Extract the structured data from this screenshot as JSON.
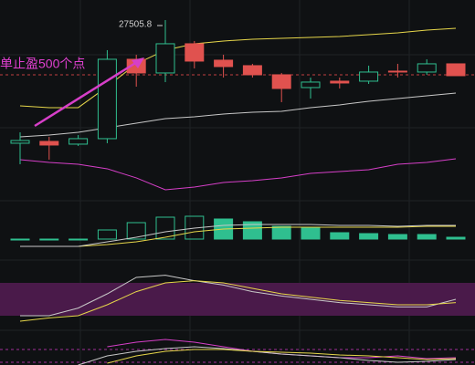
{
  "chart_data": [
    {
      "type": "candlestick",
      "ylim": [
        26415.8,
        27615.8
      ],
      "up_color": "#2fbf8f",
      "down_color": "#e0524f",
      "candles": [
        {
          "open": 26831,
          "close": 26846,
          "high": 26891,
          "low": 26716
        },
        {
          "open": 26841,
          "close": 26821,
          "high": 26866,
          "low": 26741
        },
        {
          "open": 26826,
          "close": 26856,
          "high": 26876,
          "low": 26816
        },
        {
          "open": 26856,
          "close": 27291,
          "high": 27341,
          "low": 26831
        },
        {
          "open": 27291,
          "close": 27216,
          "high": 27316,
          "low": 27141
        },
        {
          "open": 27216,
          "close": 27376,
          "high": 27505.8,
          "low": 27166
        },
        {
          "open": 27376,
          "close": 27281,
          "high": 27391,
          "low": 27241
        },
        {
          "open": 27286,
          "close": 27251,
          "high": 27316,
          "low": 27191
        },
        {
          "open": 27256,
          "close": 27206,
          "high": 27266,
          "low": 27191
        },
        {
          "open": 27206,
          "close": 27131,
          "high": 27216,
          "low": 27056
        },
        {
          "open": 27136,
          "close": 27166,
          "high": 27191,
          "low": 27076
        },
        {
          "open": 27171,
          "close": 27161,
          "high": 27191,
          "low": 27131
        },
        {
          "open": 27171,
          "close": 27221,
          "high": 27256,
          "low": 27156
        },
        {
          "open": 27226,
          "close": 27221,
          "high": 27266,
          "low": 27191
        },
        {
          "open": 27221,
          "close": 27266,
          "high": 27291,
          "low": 27206
        },
        {
          "open": 27266,
          "close": 27201,
          "high": 27266,
          "low": 27201
        }
      ],
      "series": [
        {
          "color": "#e6d64a",
          "values": [
            27036,
            27026,
            27026,
            27141,
            27266,
            27341,
            27376,
            27391,
            27401,
            27406,
            27411,
            27416,
            27426,
            27436,
            27451,
            27461
          ]
        },
        {
          "color": "#c8c8c8",
          "values": [
            26866,
            26876,
            26891,
            26916,
            26941,
            26966,
            26976,
            26991,
            27001,
            27006,
            27026,
            27041,
            27061,
            27076,
            27091,
            27106
          ]
        },
        {
          "color": "#d63fc8",
          "values": [
            26741,
            26726,
            26716,
            26691,
            26641,
            26576,
            26591,
            26616,
            26626,
            26641,
            26666,
            26676,
            26686,
            26716,
            26726,
            26746
          ]
        }
      ],
      "price_line": 27206,
      "annotation": "单止盈500个点"
    },
    {
      "type": "bar",
      "ylim": [
        -10,
        30
      ],
      "up_color": "#2fbf8f",
      "values": [
        -1,
        -1,
        -1,
        10,
        18,
        24,
        25,
        22,
        19,
        14,
        12,
        7,
        6,
        5,
        5,
        2
      ],
      "series": [
        {
          "color": "#e6d64a",
          "values": [
            -8,
            -8,
            -8,
            -6,
            -3,
            2,
            8,
            11,
            12,
            13,
            13,
            13,
            13,
            13,
            14,
            14
          ]
        },
        {
          "color": "#c8c8c8",
          "values": [
            -8,
            -8,
            -8,
            -3,
            2,
            8,
            12,
            15,
            16,
            16,
            16,
            15,
            15,
            14,
            15,
            15
          ]
        }
      ]
    },
    {
      "type": "line",
      "ylim": [
        0,
        100
      ],
      "band": [
        20,
        80
      ],
      "band_color": "#4a1a4a",
      "series": [
        {
          "color": "#c8c8c8",
          "values": [
            20,
            20,
            34,
            60,
            90,
            94,
            84,
            76,
            64,
            56,
            50,
            44,
            40,
            36,
            36,
            50
          ]
        },
        {
          "color": "#e6d64a",
          "values": [
            10,
            16,
            20,
            40,
            64,
            80,
            84,
            80,
            70,
            60,
            54,
            48,
            44,
            40,
            40,
            44
          ]
        }
      ]
    },
    {
      "type": "line",
      "ylim": [
        0,
        35
      ],
      "levels": [
        17,
        3
      ],
      "level_color": "#a0309a",
      "series": [
        {
          "color": "#d63fc8",
          "values": [
            null,
            null,
            null,
            20,
            25,
            28,
            25,
            20,
            15,
            12,
            10,
            8,
            8,
            10,
            7,
            8
          ]
        },
        {
          "color": "#c8c8c8",
          "values": [
            null,
            null,
            0,
            10,
            15,
            18,
            20,
            18,
            15,
            12,
            10,
            8,
            5,
            3,
            4,
            6
          ]
        },
        {
          "color": "#e6d64a",
          "values": [
            null,
            null,
            null,
            2,
            10,
            15,
            17,
            17,
            15,
            14,
            13,
            11,
            10,
            8,
            6,
            7
          ]
        }
      ]
    }
  ]
}
